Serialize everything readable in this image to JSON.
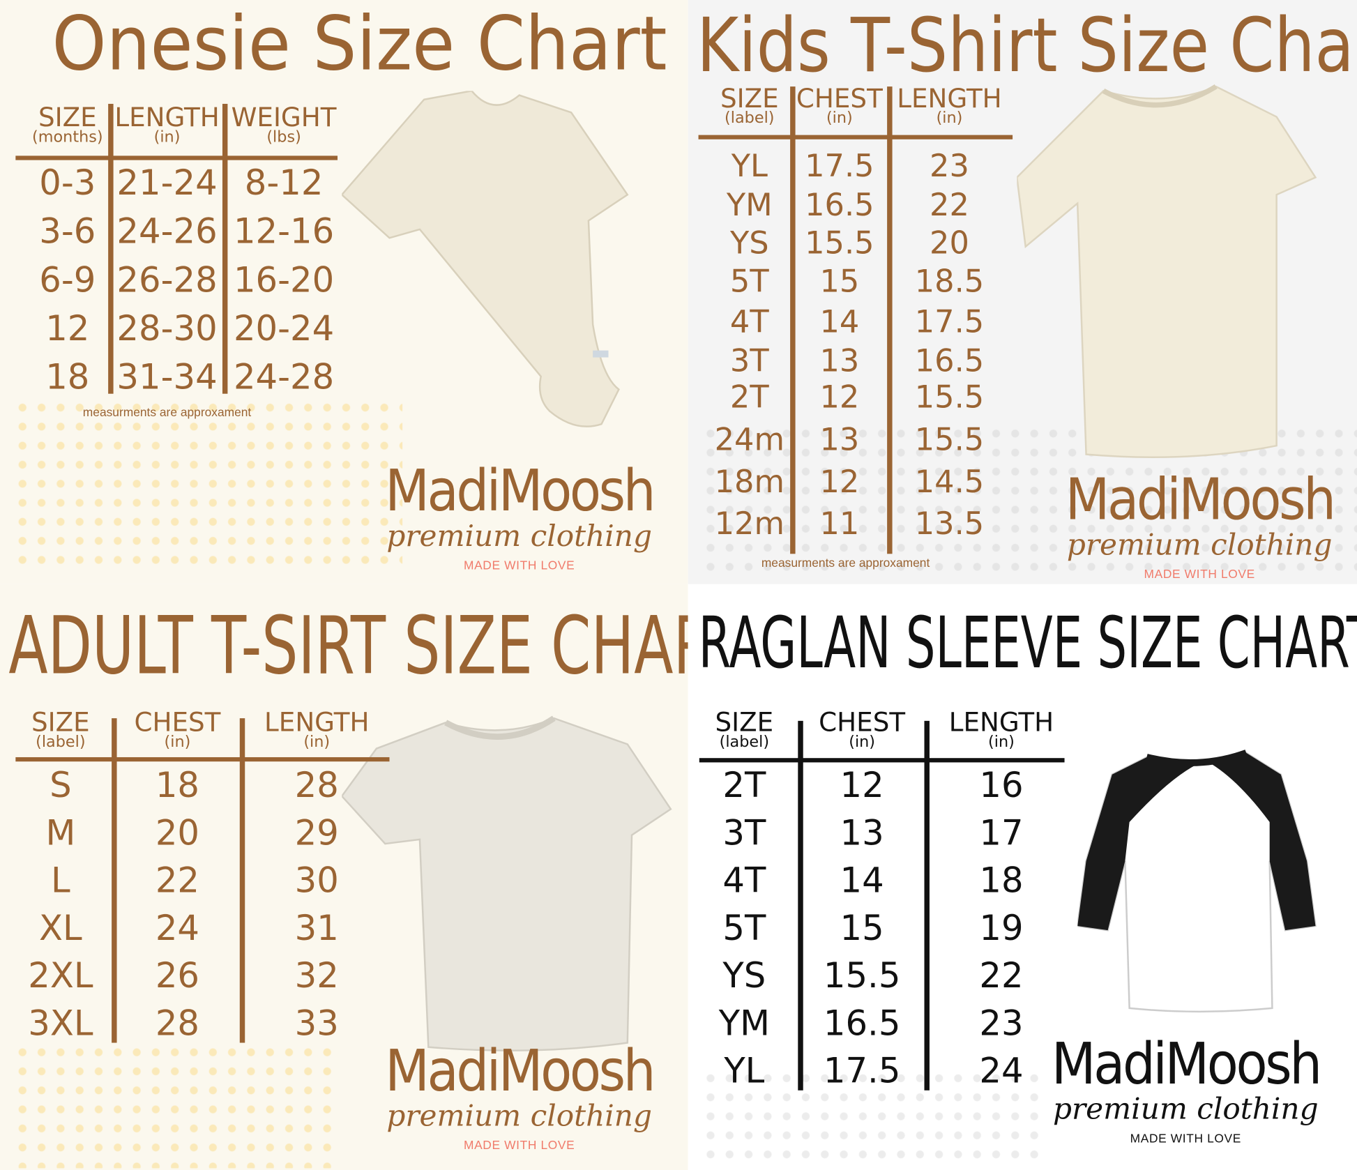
{
  "colors": {
    "brown": "#9a6433",
    "black": "#111111",
    "love": "#f07b6b",
    "cream": "#fbf8ee",
    "grey_bg": "#f4f4f4",
    "white_bg": "#ffffff"
  },
  "brand": {
    "name": "MadiMoosh",
    "tagline": "premium clothing",
    "motto": "MADE WITH LOVE"
  },
  "panels": [
    {
      "id": "onesie",
      "title": "Onesie Size Chart",
      "garment": "onesie",
      "headers": [
        {
          "label": "SIZE",
          "unit": "(months)"
        },
        {
          "label": "LENGTH",
          "unit": "(in)"
        },
        {
          "label": "WEIGHT",
          "unit": "(lbs)"
        }
      ],
      "rows": [
        [
          "0-3",
          "21-24",
          "8-12"
        ],
        [
          "3-6",
          "24-26",
          "12-16"
        ],
        [
          "6-9",
          "26-28",
          "16-20"
        ],
        [
          "12",
          "28-30",
          "20-24"
        ],
        [
          "18",
          "31-34",
          "24-28"
        ]
      ],
      "note": "measurments are approxament"
    },
    {
      "id": "kids",
      "title": "Kids T-Shirt Size Chart",
      "garment": "kids-t-shirt",
      "headers": [
        {
          "label": "SIZE",
          "unit": "(label)"
        },
        {
          "label": "CHEST",
          "unit": "(in)"
        },
        {
          "label": "LENGTH",
          "unit": "(in)"
        }
      ],
      "rows": [
        [
          "YL",
          "17.5",
          "23"
        ],
        [
          "YM",
          "16.5",
          "22"
        ],
        [
          "YS",
          "15.5",
          "20"
        ],
        [
          "5T",
          "15",
          "18.5"
        ],
        [
          "4T",
          "14",
          "17.5"
        ],
        [
          "3T",
          "13",
          "16.5"
        ],
        [
          "2T",
          "12",
          "15.5"
        ],
        [
          "24m",
          "13",
          "15.5"
        ],
        [
          "18m",
          "12",
          "14.5"
        ],
        [
          "12m",
          "11",
          "13.5"
        ]
      ],
      "note": "measurments are approxament"
    },
    {
      "id": "adult",
      "title": "ADULT T-SIRT SIZE CHART",
      "garment": "adult-t-shirt",
      "headers": [
        {
          "label": "SIZE",
          "unit": "(label)"
        },
        {
          "label": "CHEST",
          "unit": "(in)"
        },
        {
          "label": "LENGTH",
          "unit": "(in)"
        }
      ],
      "rows": [
        [
          "S",
          "18",
          "28"
        ],
        [
          "M",
          "20",
          "29"
        ],
        [
          "L",
          "22",
          "30"
        ],
        [
          "XL",
          "24",
          "31"
        ],
        [
          "2XL",
          "26",
          "32"
        ],
        [
          "3XL",
          "28",
          "33"
        ]
      ]
    },
    {
      "id": "raglan",
      "title": "RAGLAN SLEEVE SIZE CHART",
      "garment": "raglan-shirt",
      "headers": [
        {
          "label": "SIZE",
          "unit": "(label)"
        },
        {
          "label": "CHEST",
          "unit": "(in)"
        },
        {
          "label": "LENGTH",
          "unit": "(in)"
        }
      ],
      "rows": [
        [
          "2T",
          "12",
          "16"
        ],
        [
          "3T",
          "13",
          "17"
        ],
        [
          "4T",
          "14",
          "18"
        ],
        [
          "5T",
          "15",
          "19"
        ],
        [
          "YS",
          "15.5",
          "22"
        ],
        [
          "YM",
          "16.5",
          "23"
        ],
        [
          "YL",
          "17.5",
          "24"
        ]
      ]
    }
  ]
}
